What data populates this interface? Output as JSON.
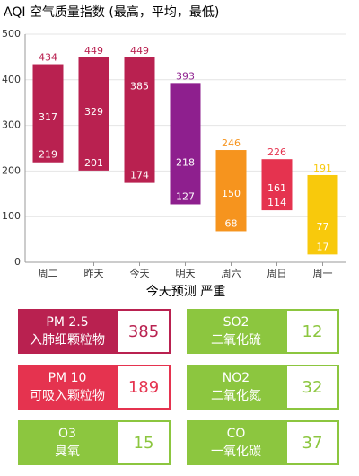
{
  "chart_data": {
    "type": "range-bar",
    "title": "AQI 空气质量指数 (最高，平均，最低)",
    "categories": [
      "周二",
      "昨天",
      "今天",
      "明天",
      "周六",
      "周日",
      "周一"
    ],
    "highs": [
      434,
      449,
      449,
      393,
      246,
      226,
      191
    ],
    "averages": [
      317,
      329,
      385,
      218,
      150,
      161,
      77
    ],
    "lows": [
      219,
      201,
      174,
      127,
      68,
      114,
      17
    ],
    "colors": [
      "#b92150",
      "#b92150",
      "#b92150",
      "#8e1f8e",
      "#f6941e",
      "#e5334f",
      "#f8c90c"
    ],
    "ylim": [
      0,
      500
    ],
    "yticks": [
      0,
      100,
      200,
      300,
      400,
      500
    ],
    "grid": true,
    "annotation": "今天预测 严重"
  },
  "pollutants": [
    {
      "name": "PM 2.5",
      "description": "入肺细颗粒物",
      "value": 385,
      "color": "#b92150"
    },
    {
      "name": "SO2",
      "description": "二氧化硫",
      "value": 12,
      "color": "#8cc63f"
    },
    {
      "name": "PM 10",
      "description": "可吸入颗粒物",
      "value": 189,
      "color": "#e5334f"
    },
    {
      "name": "NO2",
      "description": "二氧化氮",
      "value": 32,
      "color": "#8cc63f"
    },
    {
      "name": "O3",
      "description": "臭氧",
      "value": 15,
      "color": "#8cc63f"
    },
    {
      "name": "CO",
      "description": "一氧化碳",
      "value": 37,
      "color": "#8cc63f"
    }
  ]
}
